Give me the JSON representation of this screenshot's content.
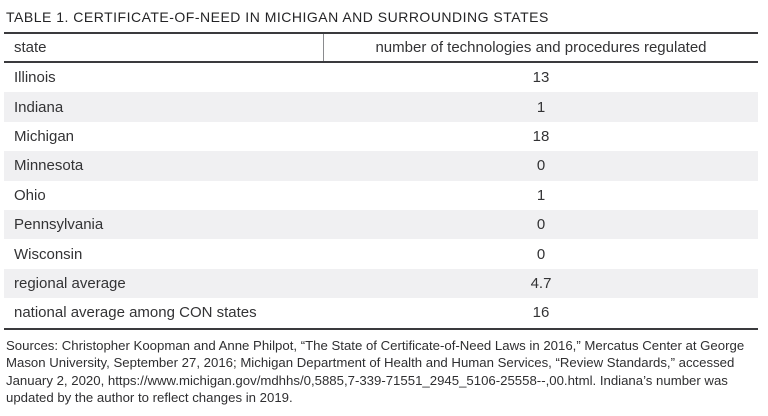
{
  "title": "TABLE 1. CERTIFICATE-OF-NEED IN MICHIGAN AND SURROUNDING STATES",
  "table": {
    "header": {
      "state": "state",
      "value": "number of technologies and procedures regulated"
    },
    "rows": [
      {
        "state": "Illinois",
        "value": "13"
      },
      {
        "state": "Indiana",
        "value": "1"
      },
      {
        "state": "Michigan",
        "value": "18"
      },
      {
        "state": "Minnesota",
        "value": "0"
      },
      {
        "state": "Ohio",
        "value": "1"
      },
      {
        "state": "Pennsylvania",
        "value": "0"
      },
      {
        "state": "Wisconsin",
        "value": "0"
      },
      {
        "state": "regional average",
        "value": "4.7"
      },
      {
        "state": "national average among CON states",
        "value": "16"
      }
    ]
  },
  "sources": "Sources: Christopher Koopman and Anne Philpot, “The State of Certificate-of-Need Laws in 2016,” Mercatus Center at George Mason University, September 27, 2016; Michigan Department of Health and Human Services, “Review Standards,” accessed January 2, 2020, https://www.michigan.gov/mdhhs/0,5885,7-339-71551_2945_5106-25558--,00.html. Indiana’s number was updated by the author to reflect changes in 2019.",
  "colors": {
    "row_alt_background": "#f0f0f2",
    "rule_dark": "#3a3a3d",
    "header_divider": "#8a8b8e",
    "text_primary": "#333335"
  },
  "chart_data": {
    "type": "table",
    "title": "TABLE 1. CERTIFICATE-OF-NEED IN MICHIGAN AND SURROUNDING STATES",
    "columns": [
      "state",
      "number of technologies and procedures regulated"
    ],
    "rows": [
      [
        "Illinois",
        13
      ],
      [
        "Indiana",
        1
      ],
      [
        "Michigan",
        18
      ],
      [
        "Minnesota",
        0
      ],
      [
        "Ohio",
        1
      ],
      [
        "Pennsylvania",
        0
      ],
      [
        "Wisconsin",
        0
      ],
      [
        "regional average",
        4.7
      ],
      [
        "national average among CON states",
        16
      ]
    ]
  }
}
